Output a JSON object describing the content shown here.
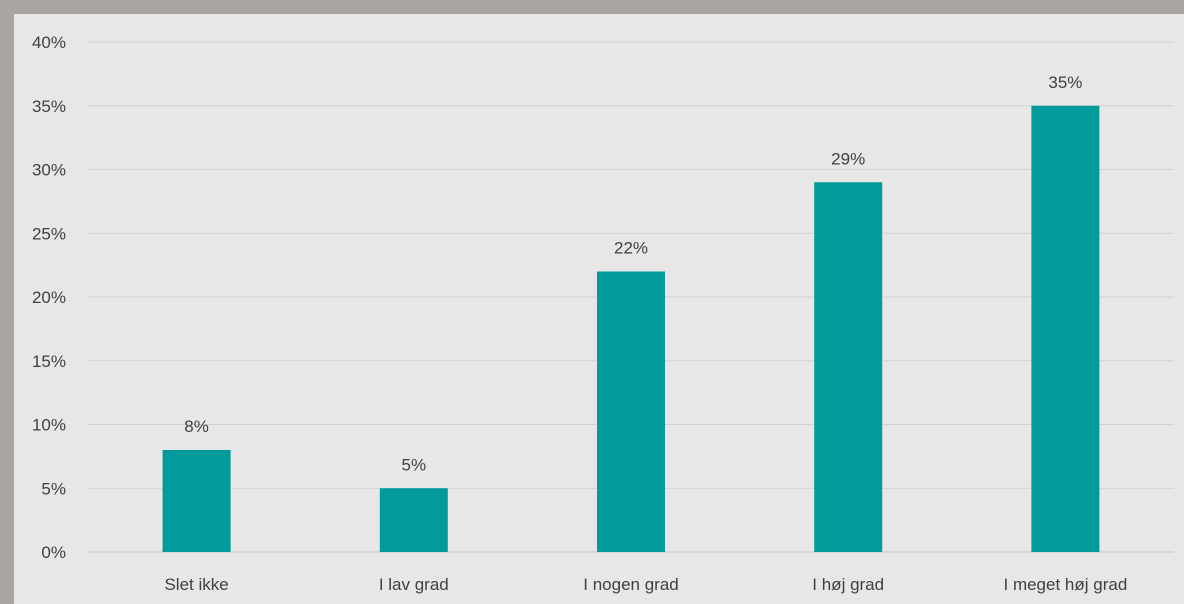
{
  "chart_data": {
    "type": "bar",
    "categories": [
      "Slet ikke",
      "I lav grad",
      "I nogen grad",
      "I høj grad",
      "I meget høj grad"
    ],
    "values": [
      8,
      5,
      22,
      29,
      35
    ],
    "data_labels": [
      "8%",
      "5%",
      "22%",
      "29%",
      "35%"
    ],
    "title": "",
    "xlabel": "",
    "ylabel": "",
    "ylim": [
      0,
      40
    ],
    "yticks": [
      0,
      5,
      10,
      15,
      20,
      25,
      30,
      35,
      40
    ],
    "ytick_labels": [
      "0%",
      "5%",
      "10%",
      "15%",
      "20%",
      "25%",
      "30%",
      "35%",
      "40%"
    ],
    "grid": true,
    "legend": "none",
    "colors": {
      "bar": "#009b9a",
      "background": "#e7e7e7",
      "frame": "#a8a5a2"
    }
  }
}
